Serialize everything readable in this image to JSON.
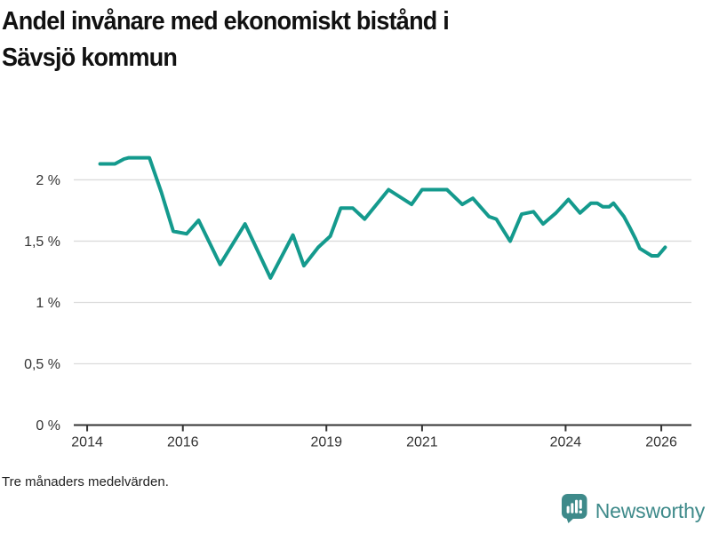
{
  "title": {
    "full": "Andel invånare med ekonomiskt bistånd i Sävsjö kommun",
    "line1": "Andel invånare med ekonomiskt bistånd i",
    "line2": "Sävsjö kommun"
  },
  "footnote": "Tre månaders medelvärden.",
  "branding": {
    "name": "Newsworthy",
    "icon": "bar-chart-speech-bubble-icon",
    "color": "#3E8A8A"
  },
  "colors": {
    "line": "#149A8D",
    "grid": "#DCDCDC",
    "axis": "#333333",
    "tick_text": "#333333"
  },
  "chart_data": {
    "type": "line",
    "title": "Andel invånare med ekonomiskt bistånd i Sävsjö kommun",
    "xlabel": "",
    "ylabel": "",
    "unit": "%",
    "grid": "horizontal",
    "legend_position": "none",
    "x_range": [
      2013.72,
      2026.63
    ],
    "y_range": [
      0,
      2.38
    ],
    "x_ticks": [
      {
        "value": 2014,
        "label": "2014"
      },
      {
        "value": 2016,
        "label": "2016"
      },
      {
        "value": 2019,
        "label": "2019"
      },
      {
        "value": 2021,
        "label": "2021"
      },
      {
        "value": 2024,
        "label": "2024"
      },
      {
        "value": 2026,
        "label": "2026"
      }
    ],
    "y_ticks": [
      {
        "value": 0,
        "label": "0 %"
      },
      {
        "value": 0.5,
        "label": "0,5 %"
      },
      {
        "value": 1,
        "label": "1 %"
      },
      {
        "value": 1.5,
        "label": "1,5 %"
      },
      {
        "value": 2,
        "label": "2 %"
      }
    ],
    "series": [
      {
        "name": "Andel invånare med ekonomiskt bistånd, Sävsjö kommun",
        "color": "#149A8D",
        "points": [
          [
            2014.27,
            2.13
          ],
          [
            2014.58,
            2.13
          ],
          [
            2014.77,
            2.17
          ],
          [
            2014.87,
            2.18
          ],
          [
            2015.3,
            2.18
          ],
          [
            2015.55,
            1.9
          ],
          [
            2015.8,
            1.58
          ],
          [
            2016.08,
            1.56
          ],
          [
            2016.33,
            1.67
          ],
          [
            2016.78,
            1.31
          ],
          [
            2017.3,
            1.64
          ],
          [
            2017.83,
            1.2
          ],
          [
            2018.3,
            1.55
          ],
          [
            2018.53,
            1.3
          ],
          [
            2018.83,
            1.45
          ],
          [
            2019.08,
            1.54
          ],
          [
            2019.3,
            1.77
          ],
          [
            2019.55,
            1.77
          ],
          [
            2019.8,
            1.68
          ],
          [
            2020.3,
            1.92
          ],
          [
            2020.78,
            1.8
          ],
          [
            2021.0,
            1.92
          ],
          [
            2021.52,
            1.92
          ],
          [
            2021.84,
            1.8
          ],
          [
            2022.06,
            1.85
          ],
          [
            2022.4,
            1.7
          ],
          [
            2022.55,
            1.68
          ],
          [
            2022.84,
            1.5
          ],
          [
            2023.08,
            1.72
          ],
          [
            2023.33,
            1.74
          ],
          [
            2023.53,
            1.64
          ],
          [
            2023.8,
            1.73
          ],
          [
            2024.06,
            1.84
          ],
          [
            2024.3,
            1.73
          ],
          [
            2024.53,
            1.81
          ],
          [
            2024.66,
            1.81
          ],
          [
            2024.78,
            1.78
          ],
          [
            2024.91,
            1.78
          ],
          [
            2025.0,
            1.81
          ],
          [
            2025.22,
            1.7
          ],
          [
            2025.33,
            1.62
          ],
          [
            2025.46,
            1.52
          ],
          [
            2025.55,
            1.44
          ],
          [
            2025.8,
            1.38
          ],
          [
            2025.93,
            1.38
          ],
          [
            2026.08,
            1.45
          ]
        ]
      }
    ]
  }
}
